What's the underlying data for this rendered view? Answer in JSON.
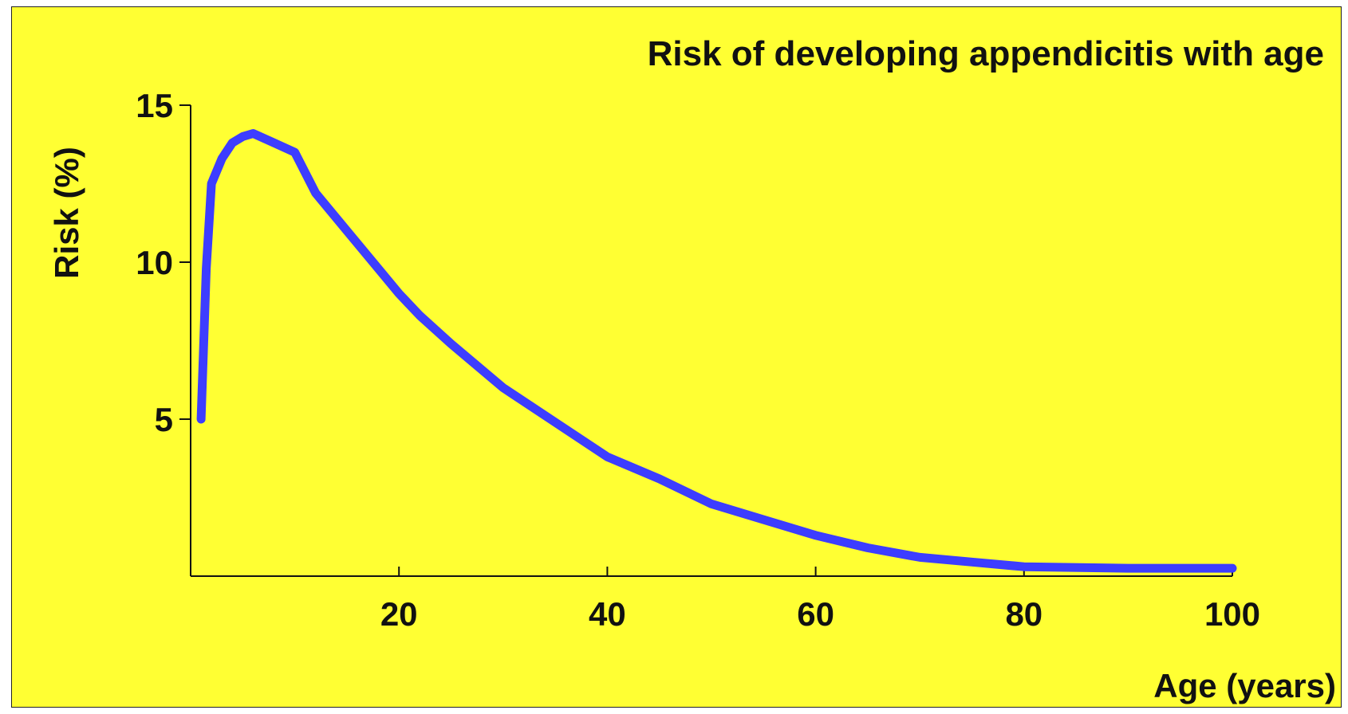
{
  "chart_data": {
    "type": "line",
    "title": "Risk of developing appendicitis with age",
    "xlabel": "Age (years)",
    "ylabel": "Risk (%)",
    "xlim": [
      0,
      100
    ],
    "ylim": [
      0,
      15
    ],
    "x_ticks": [
      20,
      40,
      60,
      80,
      100
    ],
    "y_ticks": [
      5,
      10,
      15
    ],
    "grid": false,
    "line_color": "#3d3dff",
    "background_color": "#ffff33",
    "series": [
      {
        "x": [
          1,
          1.5,
          2,
          3,
          4,
          5,
          6,
          8,
          10,
          12,
          15,
          18,
          20,
          22,
          25,
          30,
          35,
          40,
          45,
          50,
          55,
          60,
          65,
          70,
          75,
          80,
          90,
          100
        ],
        "values": [
          5.0,
          9.8,
          12.5,
          13.3,
          13.8,
          14.0,
          14.1,
          13.8,
          13.5,
          12.2,
          11.0,
          9.8,
          9.0,
          8.3,
          7.4,
          6.0,
          4.9,
          3.8,
          3.1,
          2.3,
          1.8,
          1.3,
          0.9,
          0.6,
          0.45,
          0.3,
          0.25,
          0.25
        ]
      }
    ]
  }
}
